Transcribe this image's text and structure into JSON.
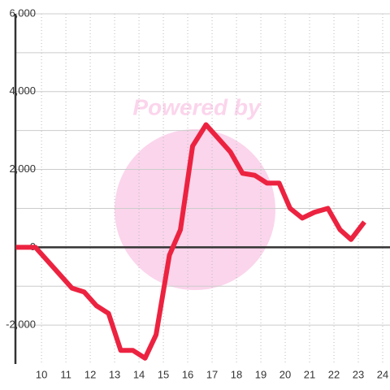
{
  "chart_data": {
    "type": "line",
    "watermark": "Powered by",
    "x": [
      8.95,
      9.75,
      10.25,
      10.75,
      11.25,
      11.75,
      12.25,
      12.75,
      13.25,
      13.75,
      14.25,
      14.7,
      15.25,
      15.7,
      16.2,
      16.75,
      17.25,
      17.75,
      18.25,
      18.75,
      19.25,
      19.75,
      20.2,
      20.7,
      21.2,
      21.75,
      22.25,
      22.7,
      23.25
    ],
    "series": [
      {
        "name": "value",
        "color": "#ec2340",
        "values": [
          0,
          0,
          -350,
          -700,
          -1050,
          -1150,
          -1500,
          -1700,
          -2650,
          -2650,
          -2850,
          -2250,
          -200,
          450,
          2600,
          3150,
          2800,
          2450,
          1900,
          1850,
          1650,
          1650,
          1000,
          750,
          900,
          1000,
          450,
          200,
          650
        ]
      }
    ],
    "xlim": [
      8.93,
      24.3
    ],
    "xticks": [
      10,
      11,
      12,
      13,
      14,
      15,
      16,
      17,
      18,
      19,
      20,
      21,
      22,
      23,
      24
    ],
    "ylim": [
      -3000,
      6000
    ],
    "yticks": [
      {
        "value": -2000,
        "label": "-2,000"
      },
      0,
      {
        "value": 2000,
        "label": "2,000"
      },
      {
        "value": 4000,
        "label": "4,000"
      },
      {
        "value": 6000,
        "label": "6,000"
      }
    ],
    "y_minor_ticks": [
      -1000,
      1000,
      3000,
      5000
    ],
    "grid": true
  }
}
